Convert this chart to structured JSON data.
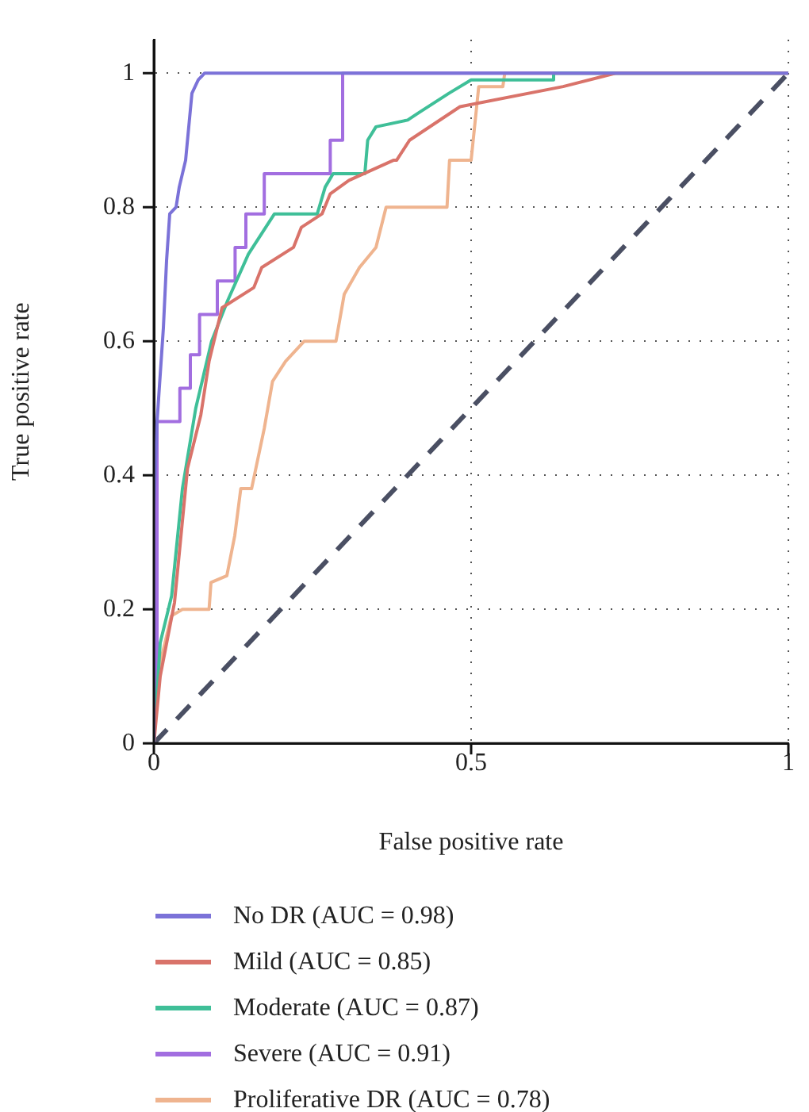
{
  "chart_data": {
    "type": "line",
    "xlabel": "False positive rate",
    "ylabel": "True positive rate",
    "xlim": [
      0,
      1
    ],
    "ylim": [
      0,
      1.05
    ],
    "xticks": [
      0,
      0.5,
      1
    ],
    "yticks": [
      0,
      0.2,
      0.4,
      0.6,
      0.8,
      1
    ],
    "grid": true,
    "legend": "bottom left",
    "marker": "none",
    "line_style": "solid",
    "series": [
      {
        "name": "No DR (AUC = 0.98)",
        "color": "#7b72d8",
        "x": [
          0,
          0,
          0.005,
          0.01,
          0.015,
          0.02,
          0.025,
          0.035,
          0.04,
          0.05,
          0.055,
          0.06,
          0.07,
          0.08,
          1
        ],
        "values": [
          0,
          0.35,
          0.48,
          0.55,
          0.62,
          0.72,
          0.79,
          0.8,
          0.83,
          0.87,
          0.92,
          0.97,
          0.99,
          1,
          1
        ]
      },
      {
        "name": "Mild (AUC = 0.85)",
        "color": "#d9736a",
        "x": [
          0,
          0.01,
          0.0325,
          0.053,
          0.074,
          0.087,
          0.1075,
          0.1575,
          0.17,
          0.22,
          0.2325,
          0.265,
          0.278,
          0.3075,
          0.3775,
          0.3825,
          0.403,
          0.4825,
          0.645,
          0.7275,
          1
        ],
        "values": [
          0,
          0.1,
          0.21,
          0.41,
          0.49,
          0.57,
          0.65,
          0.68,
          0.71,
          0.74,
          0.77,
          0.79,
          0.82,
          0.84,
          0.87,
          0.87,
          0.9,
          0.95,
          0.98,
          1,
          1
        ]
      },
      {
        "name": "Moderate (AUC = 0.87)",
        "color": "#3fbf98",
        "x": [
          0,
          0.01,
          0.028,
          0.045,
          0.066,
          0.091,
          0.116,
          0.149,
          0.19,
          0.2575,
          0.27,
          0.2825,
          0.3325,
          0.337,
          0.35,
          0.4,
          0.416,
          0.465,
          0.5,
          0.63,
          0.63,
          1
        ],
        "values": [
          0,
          0.15,
          0.22,
          0.38,
          0.5,
          0.6,
          0.66,
          0.73,
          0.79,
          0.79,
          0.83,
          0.85,
          0.85,
          0.9,
          0.92,
          0.93,
          0.94,
          0.97,
          0.99,
          0.99,
          1,
          1
        ]
      },
      {
        "name": "Severe (AUC = 0.91)",
        "color": "#a26ee0",
        "x": [
          0,
          0.005,
          0.005,
          0.041,
          0.041,
          0.0575,
          0.0575,
          0.072,
          0.072,
          0.1,
          0.1,
          0.128,
          0.128,
          0.145,
          0.145,
          0.174,
          0.174,
          0.278,
          0.278,
          0.2975,
          0.2975,
          1
        ],
        "values": [
          0,
          0.1,
          0.48,
          0.48,
          0.53,
          0.53,
          0.58,
          0.58,
          0.64,
          0.64,
          0.69,
          0.69,
          0.74,
          0.74,
          0.79,
          0.79,
          0.85,
          0.85,
          0.9,
          0.9,
          1,
          1
        ]
      },
      {
        "name": "Proliferative DR (AUC = 0.78)",
        "color": "#efb48f",
        "x": [
          0,
          0.005,
          0.0275,
          0.045,
          0.087,
          0.09,
          0.115,
          0.1275,
          0.137,
          0.154,
          0.174,
          0.187,
          0.2075,
          0.237,
          0.287,
          0.3,
          0.324,
          0.35,
          0.366,
          0.462,
          0.466,
          0.5,
          0.512,
          0.55,
          0.553,
          1
        ],
        "values": [
          0,
          0.1,
          0.19,
          0.2,
          0.2,
          0.24,
          0.25,
          0.31,
          0.38,
          0.38,
          0.47,
          0.54,
          0.57,
          0.6,
          0.6,
          0.67,
          0.71,
          0.74,
          0.8,
          0.8,
          0.87,
          0.87,
          0.98,
          0.98,
          1,
          1
        ]
      },
      {
        "color": "#4a4f63",
        "line_style": "dashed",
        "x": [
          0,
          1
        ],
        "values": [
          0,
          1
        ]
      }
    ]
  }
}
